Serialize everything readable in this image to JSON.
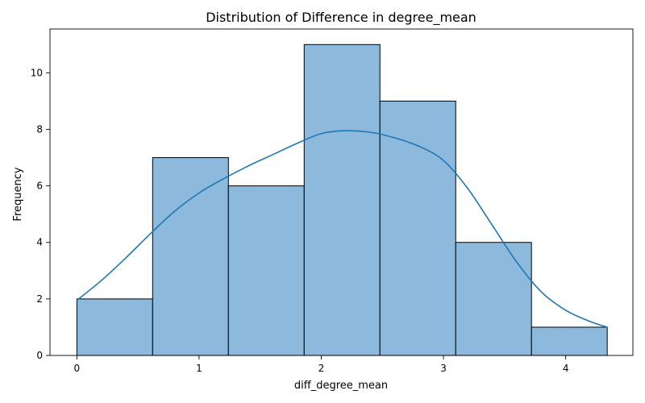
{
  "chart_data": {
    "type": "histogram",
    "title": "Distribution of Difference in degree_mean",
    "xlabel": "diff_degree_mean",
    "ylabel": "Frequency",
    "xlim": [
      -0.22,
      4.55
    ],
    "ylim": [
      0,
      11.55
    ],
    "xticks": [
      0,
      1,
      2,
      3,
      4
    ],
    "yticks": [
      0,
      2,
      4,
      6,
      8,
      10
    ],
    "bins": [
      {
        "x0": 0.0,
        "x1": 0.62,
        "count": 2
      },
      {
        "x0": 0.62,
        "x1": 1.24,
        "count": 7
      },
      {
        "x0": 1.24,
        "x1": 1.86,
        "count": 6
      },
      {
        "x0": 1.86,
        "x1": 2.48,
        "count": 11
      },
      {
        "x0": 2.48,
        "x1": 3.1,
        "count": 9
      },
      {
        "x0": 3.1,
        "x1": 3.72,
        "count": 4
      },
      {
        "x0": 3.72,
        "x1": 4.34,
        "count": 1
      }
    ],
    "kde": {
      "x": [
        0.0,
        0.2,
        0.4,
        0.6,
        0.8,
        1.0,
        1.2,
        1.4,
        1.6,
        1.8,
        2.0,
        2.2,
        2.4,
        2.6,
        2.8,
        3.0,
        3.2,
        3.4,
        3.6,
        3.8,
        4.0,
        4.2,
        4.34
      ],
      "y": [
        1.95,
        2.65,
        3.45,
        4.3,
        5.1,
        5.75,
        6.25,
        6.7,
        7.1,
        7.5,
        7.85,
        7.95,
        7.9,
        7.7,
        7.4,
        6.9,
        5.9,
        4.6,
        3.3,
        2.25,
        1.6,
        1.2,
        1.0
      ]
    },
    "colors": {
      "bar_fill": "#8db9dc",
      "bar_edge": "#000000",
      "kde_line": "#1f77b4"
    },
    "grid": false,
    "legend": false
  }
}
